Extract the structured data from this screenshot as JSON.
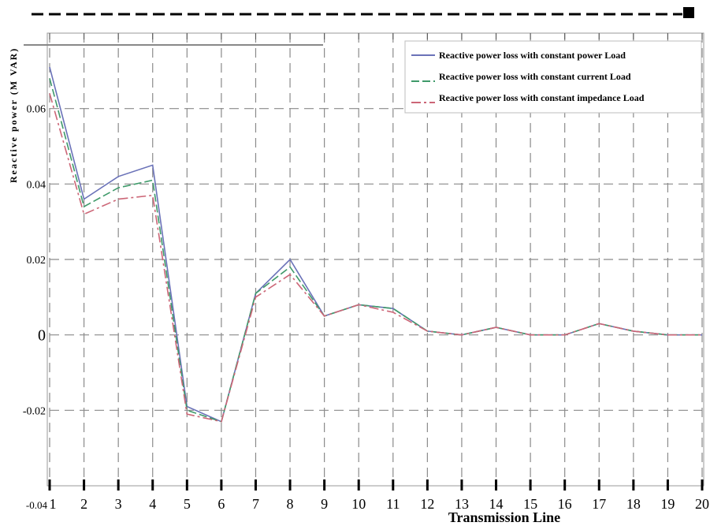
{
  "chart_data": {
    "type": "line",
    "xlabel": "Transmission Line",
    "ylabel": "Reactive power (M VAR)",
    "x": [
      1,
      2,
      3,
      4,
      5,
      6,
      7,
      8,
      9,
      10,
      11,
      12,
      13,
      14,
      15,
      16,
      17,
      18,
      19,
      20
    ],
    "x_tick_labels": [
      "1",
      "2",
      "3",
      "4",
      "5",
      "6",
      "7",
      "8",
      "9",
      "10",
      "11",
      "12",
      "13",
      "14",
      "15",
      "16",
      "17",
      "18",
      "19",
      "20"
    ],
    "origin_label": "-0.04",
    "y_ticks": [
      {
        "value": -0.02,
        "label": "-0.02"
      },
      {
        "value": 0,
        "label": "0"
      },
      {
        "value": 0.02,
        "label": "0.02"
      },
      {
        "value": 0.04,
        "label": "0.04"
      },
      {
        "value": 0.06,
        "label": "0.06"
      }
    ],
    "xlim": [
      1,
      20
    ],
    "ylim": [
      -0.04,
      0.08
    ],
    "grid": true,
    "legend_position": "top-right",
    "series": [
      {
        "name": "Reactive power loss with constant power Load",
        "color": "#6a72b8",
        "dash": "solid",
        "values": [
          0.071,
          0.036,
          0.042,
          0.045,
          -0.019,
          -0.023,
          0.011,
          0.02,
          0.005,
          0.008,
          0.007,
          0.001,
          0.0,
          0.002,
          0.0,
          0.0,
          0.003,
          0.001,
          0.0,
          0.0
        ]
      },
      {
        "name": "Reactive power loss with constant current Load",
        "color": "#3f9a6a",
        "dash": "dash",
        "values": [
          0.068,
          0.034,
          0.039,
          0.041,
          -0.02,
          -0.023,
          0.011,
          0.018,
          0.005,
          0.008,
          0.007,
          0.001,
          0.0,
          0.002,
          0.0,
          0.0,
          0.003,
          0.001,
          0.0,
          0.0
        ]
      },
      {
        "name": "Reactive power loss with constant impedance Load",
        "color": "#cc6677",
        "dash": "dashdot",
        "values": [
          0.064,
          0.032,
          0.036,
          0.037,
          -0.021,
          -0.023,
          0.01,
          0.016,
          0.005,
          0.008,
          0.006,
          0.001,
          0.0,
          0.002,
          0.0,
          0.0,
          0.003,
          0.001,
          0.0,
          0.0
        ]
      }
    ]
  }
}
